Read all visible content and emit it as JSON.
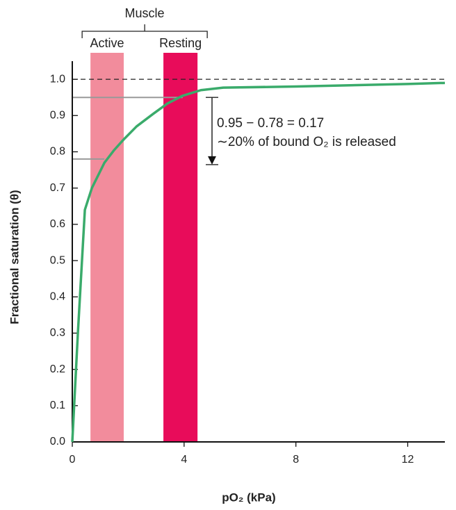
{
  "chart_data": {
    "type": "line",
    "x_label": "pO₂ (kPa)",
    "y_label": "Fractional saturation (θ)",
    "xlim": [
      0,
      13.33
    ],
    "ylim": [
      0,
      1.05
    ],
    "xticks": [
      0,
      4,
      8,
      12
    ],
    "yticks": [
      {
        "value": 0,
        "label": "0.0"
      },
      0.1,
      0.2,
      0.3,
      0.4,
      0.5,
      0.6,
      0.7,
      0.8,
      0.9,
      {
        "value": 1,
        "label": "1.0"
      }
    ],
    "series": [
      {
        "color": "#3aab6b",
        "x": [
          0,
          0.2,
          0.45,
          0.7,
          1.15,
          1.5,
          1.85,
          2.3,
          2.9,
          3.4,
          3.93,
          4.6,
          5.4,
          8,
          12,
          13.33
        ],
        "values": [
          0,
          0.3,
          0.64,
          0.7,
          0.77,
          0.805,
          0.835,
          0.87,
          0.905,
          0.933,
          0.954,
          0.97,
          0.977,
          0.98,
          0.987,
          0.99
        ]
      }
    ],
    "group_label": "Muscle",
    "bands": [
      {
        "name": "Active",
        "range": [
          0.65,
          1.84
        ],
        "color": "#f28c9c"
      },
      {
        "name": "Resting",
        "range": [
          3.26,
          4.48
        ],
        "color": "#e80c5a"
      }
    ],
    "saturation_line": 1,
    "reference_lines": [
      {
        "y": 0.95,
        "x": 3.95
      },
      {
        "y": 0.78,
        "x": 1.15
      }
    ],
    "annotation": [
      "0.95 − 0.78 = 0.17",
      "∼20% of bound O₂ is released"
    ]
  }
}
